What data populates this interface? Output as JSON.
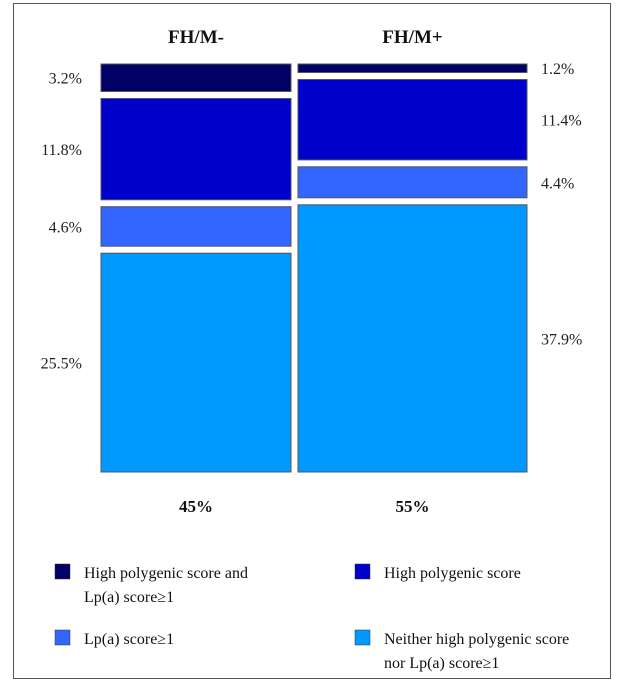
{
  "chart_data": {
    "type": "mosaic",
    "columns": [
      {
        "name": "FH/M-",
        "share_label": "45%",
        "share": 45,
        "segments": [
          {
            "category": "High polygenic score and Lp(a) score≥1",
            "label": "3.2%",
            "value": 3.2
          },
          {
            "category": "High polygenic score",
            "label": "11.8%",
            "value": 11.8
          },
          {
            "category": "Lp(a) score≥1",
            "label": "4.6%",
            "value": 4.6
          },
          {
            "category": "Neither high polygenic score nor Lp(a) score≥1",
            "label": "25.5%",
            "value": 25.5
          }
        ]
      },
      {
        "name": "FH/M+",
        "share_label": "55%",
        "share": 55,
        "segments": [
          {
            "category": "High polygenic score and Lp(a) score≥1",
            "label": "1.2%",
            "value": 1.2
          },
          {
            "category": "High polygenic score",
            "label": "11.4%",
            "value": 11.4
          },
          {
            "category": "Lp(a) score≥1",
            "label": "4.4%",
            "value": 4.4
          },
          {
            "category": "Neither high polygenic score nor Lp(a) score≥1",
            "label": "37.9%",
            "value": 37.9
          }
        ]
      }
    ],
    "legend": [
      {
        "lines": [
          "High polygenic score and",
          "Lp(a) score≥1"
        ],
        "color": "#000066"
      },
      {
        "lines": [
          "High polygenic score"
        ],
        "color": "#0000CC"
      },
      {
        "lines": [
          "Lp(a) score≥1"
        ],
        "color": "#3366FF"
      },
      {
        "lines": [
          "Neither high polygenic score",
          "nor Lp(a) score≥1"
        ],
        "color": "#0099FF"
      }
    ],
    "legend_placement": "bottom"
  }
}
